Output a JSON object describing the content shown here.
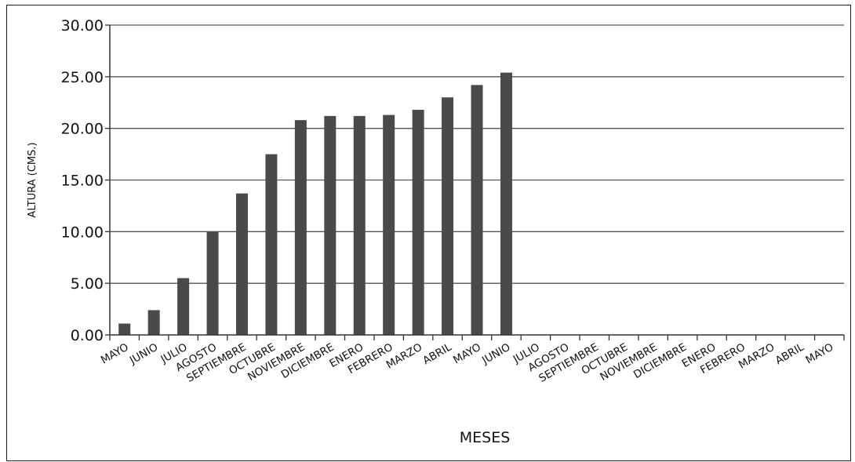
{
  "chart_data": {
    "type": "bar",
    "title": "",
    "xlabel": "MESES",
    "ylabel": "ALTURA (CMS.)",
    "ylim": [
      0,
      30
    ],
    "yticks": [
      "0.00",
      "5.00",
      "10.00",
      "15.00",
      "20.00",
      "25.00",
      "30.00"
    ],
    "grid": true,
    "bar_color": "#4a4a4a",
    "categories": [
      "MAYO",
      "JUNIO",
      "JULIO",
      "AGOSTO",
      "SEPTIEMBRE",
      "OCTUBRE",
      "NOVIEMBRE",
      "DICIEMBRE",
      "ENERO",
      "FEBRERO",
      "MARZO",
      "ABRIL",
      "MAYO",
      "JUNIO",
      "JULIO",
      "AGOSTO",
      "SEPTIEMBRE",
      "OCTUBRE",
      "NOVIEMBRE",
      "DICIEMBRE",
      "ENERO",
      "FEBRERO",
      "MARZO",
      "ABRIL",
      "MAYO"
    ],
    "values": [
      1.1,
      2.4,
      5.5,
      10.0,
      13.7,
      17.5,
      20.8,
      21.2,
      21.2,
      21.3,
      21.8,
      23.0,
      24.2,
      25.4,
      null,
      null,
      null,
      null,
      null,
      null,
      null,
      null,
      null,
      null,
      null
    ]
  }
}
